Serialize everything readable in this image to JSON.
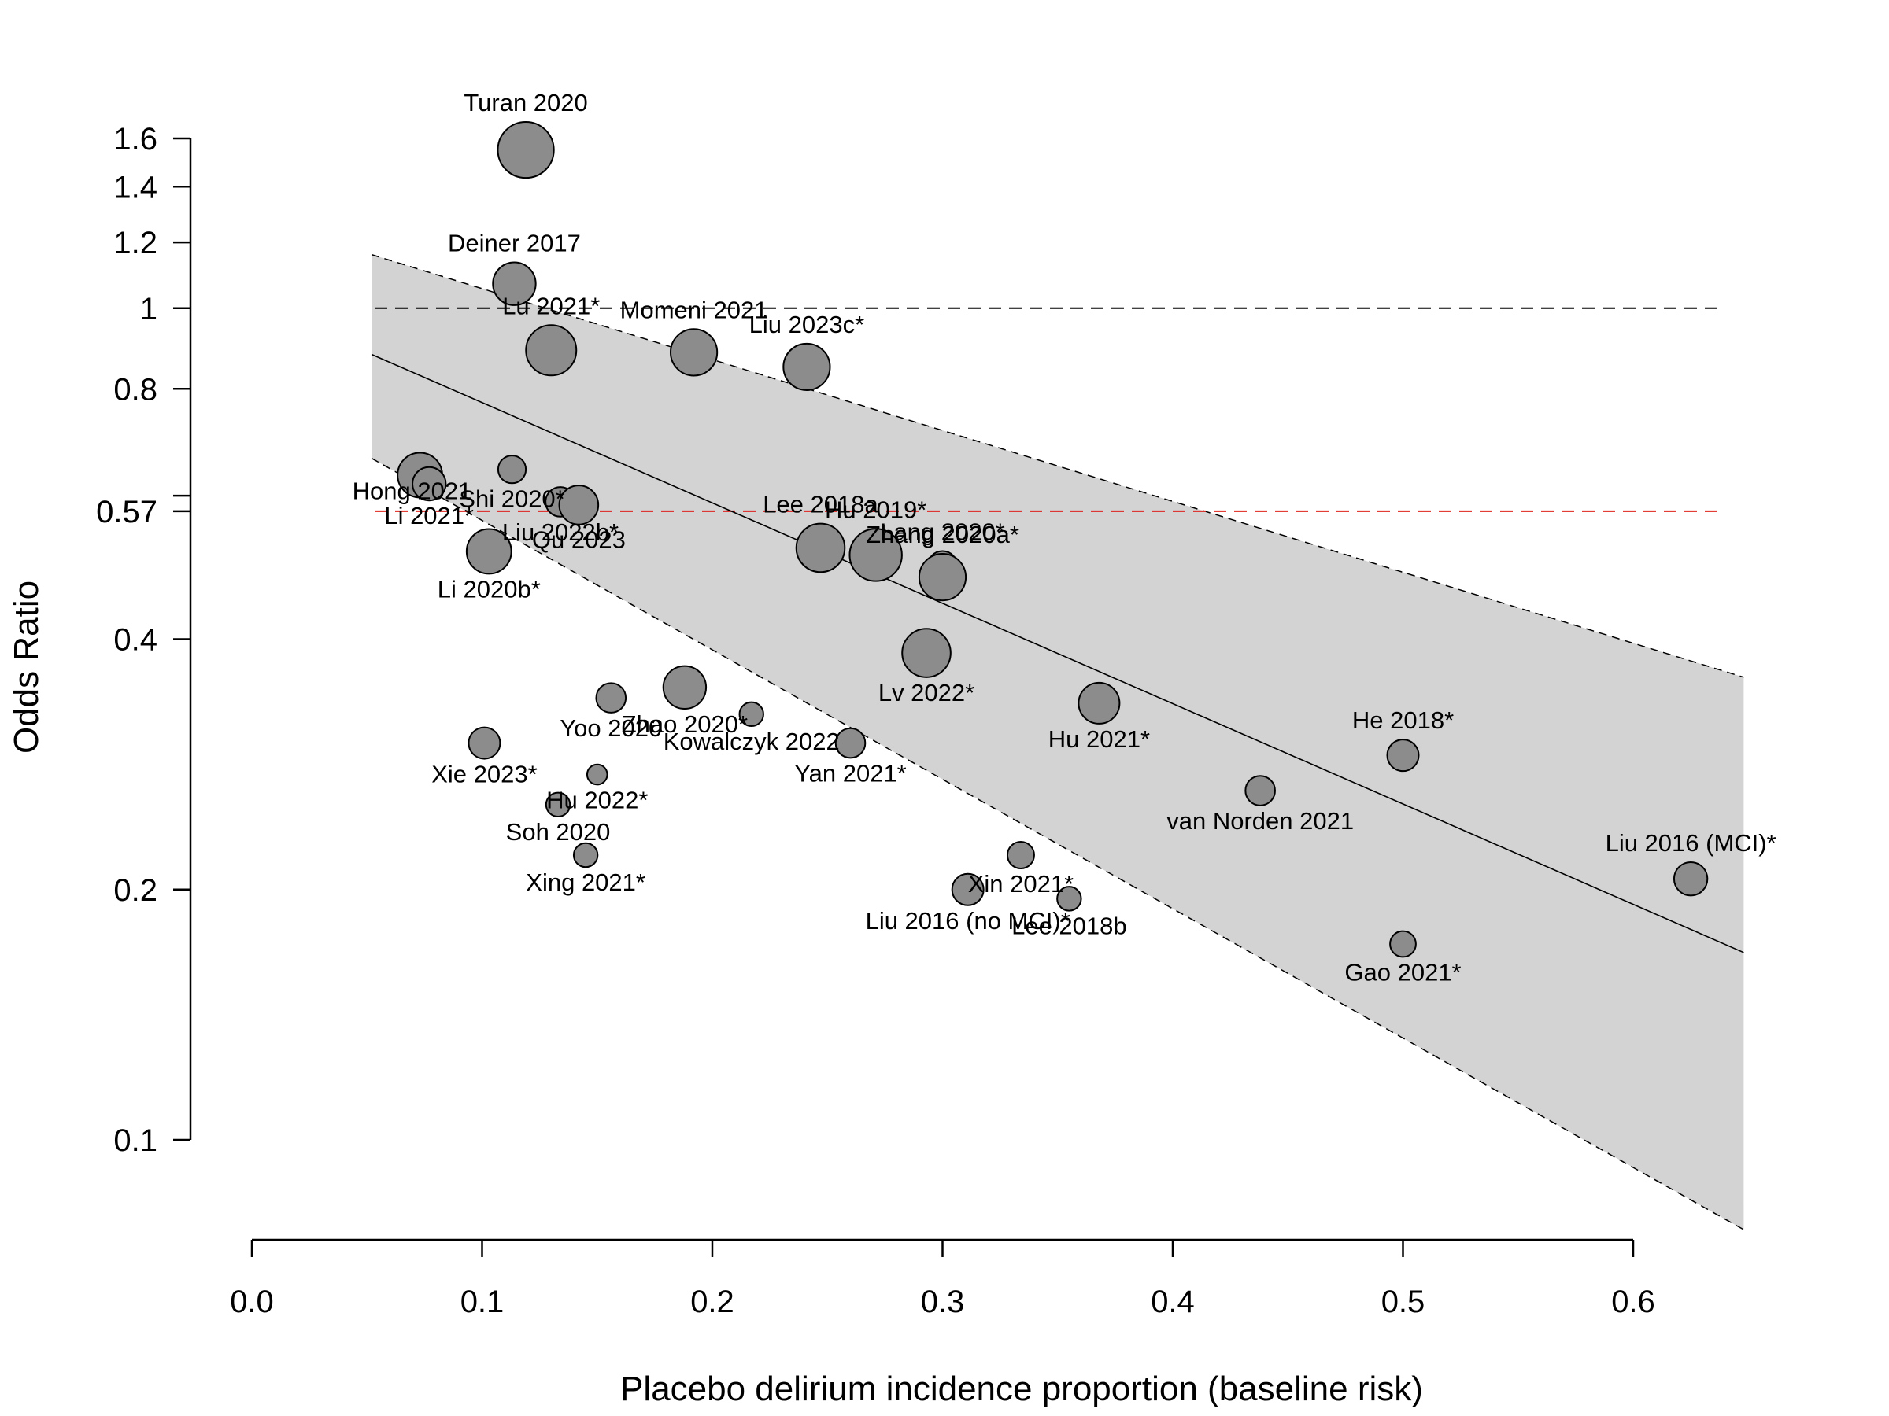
{
  "chart_data": {
    "type": "scatter",
    "title": "",
    "xlabel": "Placebo delirium incidence proportion (baseline risk)",
    "ylabel": "Odds Ratio",
    "xlim": [
      0.0,
      0.6
    ],
    "ylim": [
      0.1,
      1.6
    ],
    "yscale": "log",
    "xticks": [
      "0.0",
      "0.1",
      "0.2",
      "0.3",
      "0.4",
      "0.5",
      "0.6"
    ],
    "yticks": [
      "0.1",
      "0.2",
      "0.4",
      "0.57",
      "0.8",
      "1",
      "1.2",
      "1.4",
      "1.6"
    ],
    "reference_lines": [
      {
        "value": 1.0,
        "color": "#000000",
        "style": "dashed"
      },
      {
        "value": 0.57,
        "color": "#e0201b",
        "style": "dashed"
      }
    ],
    "regression": {
      "x": [
        0.052,
        0.648
      ],
      "fit": [
        0.88,
        0.168
      ],
      "lower": [
        0.66,
        0.078
      ],
      "upper": [
        1.16,
        0.36
      ],
      "band_color": "#d3d3d3"
    },
    "point_color": "#8c8c8c",
    "points": [
      {
        "label": "Turan 2020",
        "x": 0.119,
        "y": 1.55,
        "weight": 2.3,
        "label_pos": "above"
      },
      {
        "label": "Deiner 2017",
        "x": 0.114,
        "y": 1.07,
        "weight": 1.6,
        "label_pos": "above"
      },
      {
        "label": "Lu 2021*",
        "x": 0.13,
        "y": 0.89,
        "weight": 2.0,
        "label_pos": "above"
      },
      {
        "label": "Momeni 2021",
        "x": 0.192,
        "y": 0.885,
        "weight": 1.8,
        "label_pos": "above"
      },
      {
        "label": "Liu 2023c*",
        "x": 0.241,
        "y": 0.85,
        "weight": 1.8,
        "label_pos": "above"
      },
      {
        "label": "Hong 2021",
        "x": 0.073,
        "y": 0.63,
        "weight": 1.7,
        "label_pos": "below-left"
      },
      {
        "label": "Li 2021*",
        "x": 0.077,
        "y": 0.615,
        "weight": 1.1,
        "label_pos": "below"
      },
      {
        "label": "Shi 2020*",
        "x": 0.113,
        "y": 0.64,
        "weight": 0.8,
        "label_pos": "below"
      },
      {
        "label": "Liu 2022b*",
        "x": 0.134,
        "y": 0.585,
        "weight": 0.9,
        "label_pos": "below"
      },
      {
        "label": "Qu 2023",
        "x": 0.142,
        "y": 0.58,
        "weight": 1.4,
        "label_pos": "below"
      },
      {
        "label": "Li 2020b*",
        "x": 0.103,
        "y": 0.51,
        "weight": 1.7,
        "label_pos": "below"
      },
      {
        "label": "Lee 2018a",
        "x": 0.247,
        "y": 0.515,
        "weight": 1.9,
        "label_pos": "above"
      },
      {
        "label": "Hu 2019*",
        "x": 0.271,
        "y": 0.505,
        "weight": 2.1,
        "label_pos": "above"
      },
      {
        "label": "Lang 2020*",
        "x": 0.3,
        "y": 0.49,
        "weight": 0.9,
        "label_pos": "above"
      },
      {
        "label": "Zhang 2020a*",
        "x": 0.3,
        "y": 0.475,
        "weight": 1.8,
        "label_pos": "above"
      },
      {
        "label": "Lv 2022*",
        "x": 0.293,
        "y": 0.385,
        "weight": 1.9,
        "label_pos": "below"
      },
      {
        "label": "Hu 2021*",
        "x": 0.368,
        "y": 0.335,
        "weight": 1.5,
        "label_pos": "below"
      },
      {
        "label": "He 2018*",
        "x": 0.5,
        "y": 0.29,
        "weight": 1.0,
        "label_pos": "above"
      },
      {
        "label": "van Norden 2021",
        "x": 0.438,
        "y": 0.263,
        "weight": 0.9,
        "label_pos": "below"
      },
      {
        "label": "Liu 2016 (MCI)*",
        "x": 0.625,
        "y": 0.206,
        "weight": 1.1,
        "label_pos": "above"
      },
      {
        "label": "Gao 2021*",
        "x": 0.5,
        "y": 0.172,
        "weight": 0.7,
        "label_pos": "below"
      },
      {
        "label": "Xin 2021*",
        "x": 0.334,
        "y": 0.22,
        "weight": 0.75,
        "label_pos": "below"
      },
      {
        "label": "Liu 2016 (no MCI)*",
        "x": 0.311,
        "y": 0.2,
        "weight": 1.0,
        "label_pos": "below"
      },
      {
        "label": "Lee 2018b",
        "x": 0.355,
        "y": 0.195,
        "weight": 0.6,
        "label_pos": "below"
      },
      {
        "label": "Yoo 2020",
        "x": 0.156,
        "y": 0.34,
        "weight": 0.9,
        "label_pos": "below"
      },
      {
        "label": "Zhao 2020*",
        "x": 0.188,
        "y": 0.35,
        "weight": 1.6,
        "label_pos": "below"
      },
      {
        "label": "Kowalczyk 2022",
        "x": 0.217,
        "y": 0.325,
        "weight": 0.6,
        "label_pos": "below"
      },
      {
        "label": "Yan 2021*",
        "x": 0.26,
        "y": 0.3,
        "weight": 0.9,
        "label_pos": "below"
      },
      {
        "label": "Xie 2023*",
        "x": 0.101,
        "y": 0.3,
        "weight": 1.0,
        "label_pos": "below"
      },
      {
        "label": "Hu 2022*",
        "x": 0.15,
        "y": 0.275,
        "weight": 0.4,
        "label_pos": "below"
      },
      {
        "label": "Soh 2020",
        "x": 0.133,
        "y": 0.253,
        "weight": 0.6,
        "label_pos": "below"
      },
      {
        "label": "Xing 2021*",
        "x": 0.145,
        "y": 0.22,
        "weight": 0.6,
        "label_pos": "below"
      }
    ]
  }
}
